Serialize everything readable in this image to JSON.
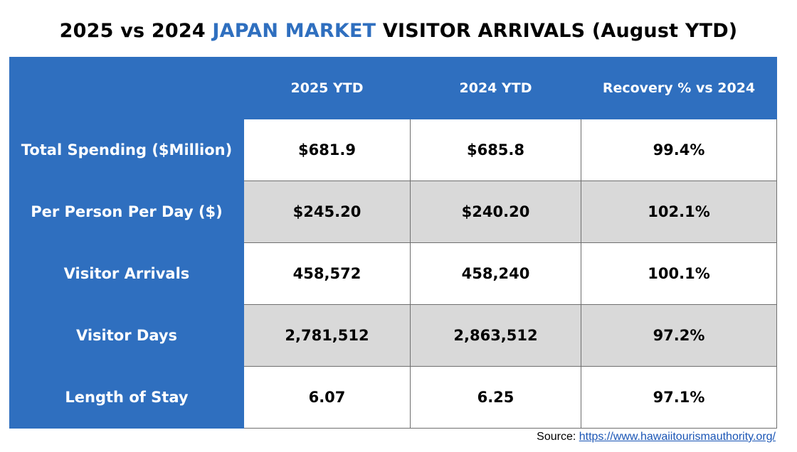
{
  "title": {
    "prefix": "2025 vs 2024 ",
    "highlight": "JAPAN MARKET",
    "suffix": " VISITOR ARRIVALS (August YTD)"
  },
  "colors": {
    "accent": "#2f6fbf",
    "shaded_row": "#d9d9d9",
    "link": "#1a55b5"
  },
  "table": {
    "headers": [
      "",
      "2025 YTD",
      "2024 YTD",
      "Recovery % vs 2024"
    ],
    "rows": [
      {
        "label": "Total Spending ($Million)",
        "y2025": "$681.9",
        "y2024": "$685.8",
        "recovery": "99.4%"
      },
      {
        "label": "Per Person Per Day ($)",
        "y2025": "$245.20",
        "y2024": "$240.20",
        "recovery": "102.1%"
      },
      {
        "label": "Visitor Arrivals",
        "y2025": "458,572",
        "y2024": "458,240",
        "recovery": "100.1%"
      },
      {
        "label": "Visitor Days",
        "y2025": "2,781,512",
        "y2024": "2,863,512",
        "recovery": "97.2%"
      },
      {
        "label": "Length of Stay",
        "y2025": "6.07",
        "y2024": "6.25",
        "recovery": "97.1%"
      }
    ]
  },
  "source": {
    "label": "Source: ",
    "link_text": "https://www.hawaiitourismauthority.org/"
  }
}
